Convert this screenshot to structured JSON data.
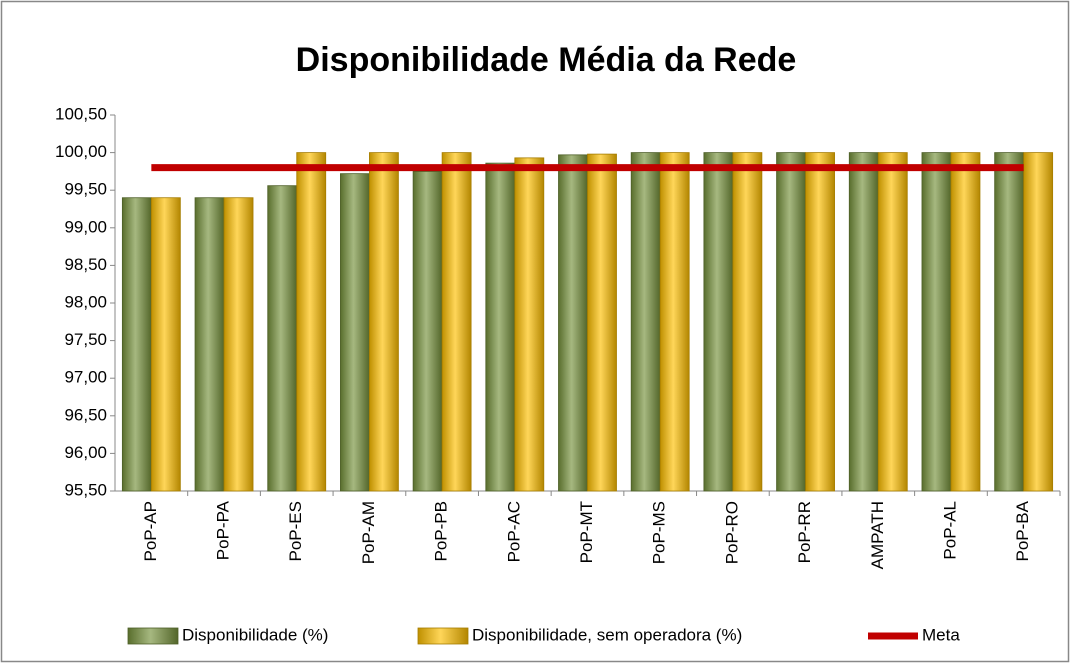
{
  "chart_data": {
    "type": "bar",
    "title": "Disponibilidade Média da Rede",
    "categories": [
      "PoP-AP",
      "PoP-PA",
      "PoP-ES",
      "PoP-AM",
      "PoP-PB",
      "PoP-AC",
      "PoP-MT",
      "PoP-MS",
      "PoP-RO",
      "PoP-RR",
      "AMPATH",
      "PoP-AL",
      "PoP-BA"
    ],
    "series": [
      {
        "name": "Disponibilidade (%)",
        "color": "#76923c",
        "values": [
          99.4,
          99.4,
          99.56,
          99.72,
          99.75,
          99.86,
          99.97,
          100.0,
          100.0,
          100.0,
          100.0,
          100.0,
          100.0
        ]
      },
      {
        "name": "Disponibilidade, sem operadora (%)",
        "color": "#ffc000",
        "values": [
          99.4,
          99.4,
          100.0,
          100.0,
          100.0,
          99.93,
          99.98,
          100.0,
          100.0,
          100.0,
          100.0,
          100.0,
          100.0
        ]
      },
      {
        "name": "Meta",
        "color": "#c00000",
        "type": "line",
        "values": [
          99.8,
          99.8,
          99.8,
          99.8,
          99.8,
          99.8,
          99.8,
          99.8,
          99.8,
          99.8,
          99.8,
          99.8,
          99.8
        ]
      }
    ],
    "ylim": [
      95.5,
      100.5
    ],
    "yticks": [
      {
        "value": 95.5,
        "label": "95,50"
      },
      {
        "value": 96,
        "label": "96,00"
      },
      {
        "value": 96.5,
        "label": "96,50"
      },
      {
        "value": 97,
        "label": "97,00"
      },
      {
        "value": 97.5,
        "label": "97,50"
      },
      {
        "value": 98,
        "label": "98,00"
      },
      {
        "value": 98.5,
        "label": "98,50"
      },
      {
        "value": 99,
        "label": "99,00"
      },
      {
        "value": 99.5,
        "label": "99,50"
      },
      {
        "value": 100,
        "label": "100,00"
      },
      {
        "value": 100.5,
        "label": "100,50"
      }
    ],
    "grid": false,
    "legend": "bottom"
  }
}
